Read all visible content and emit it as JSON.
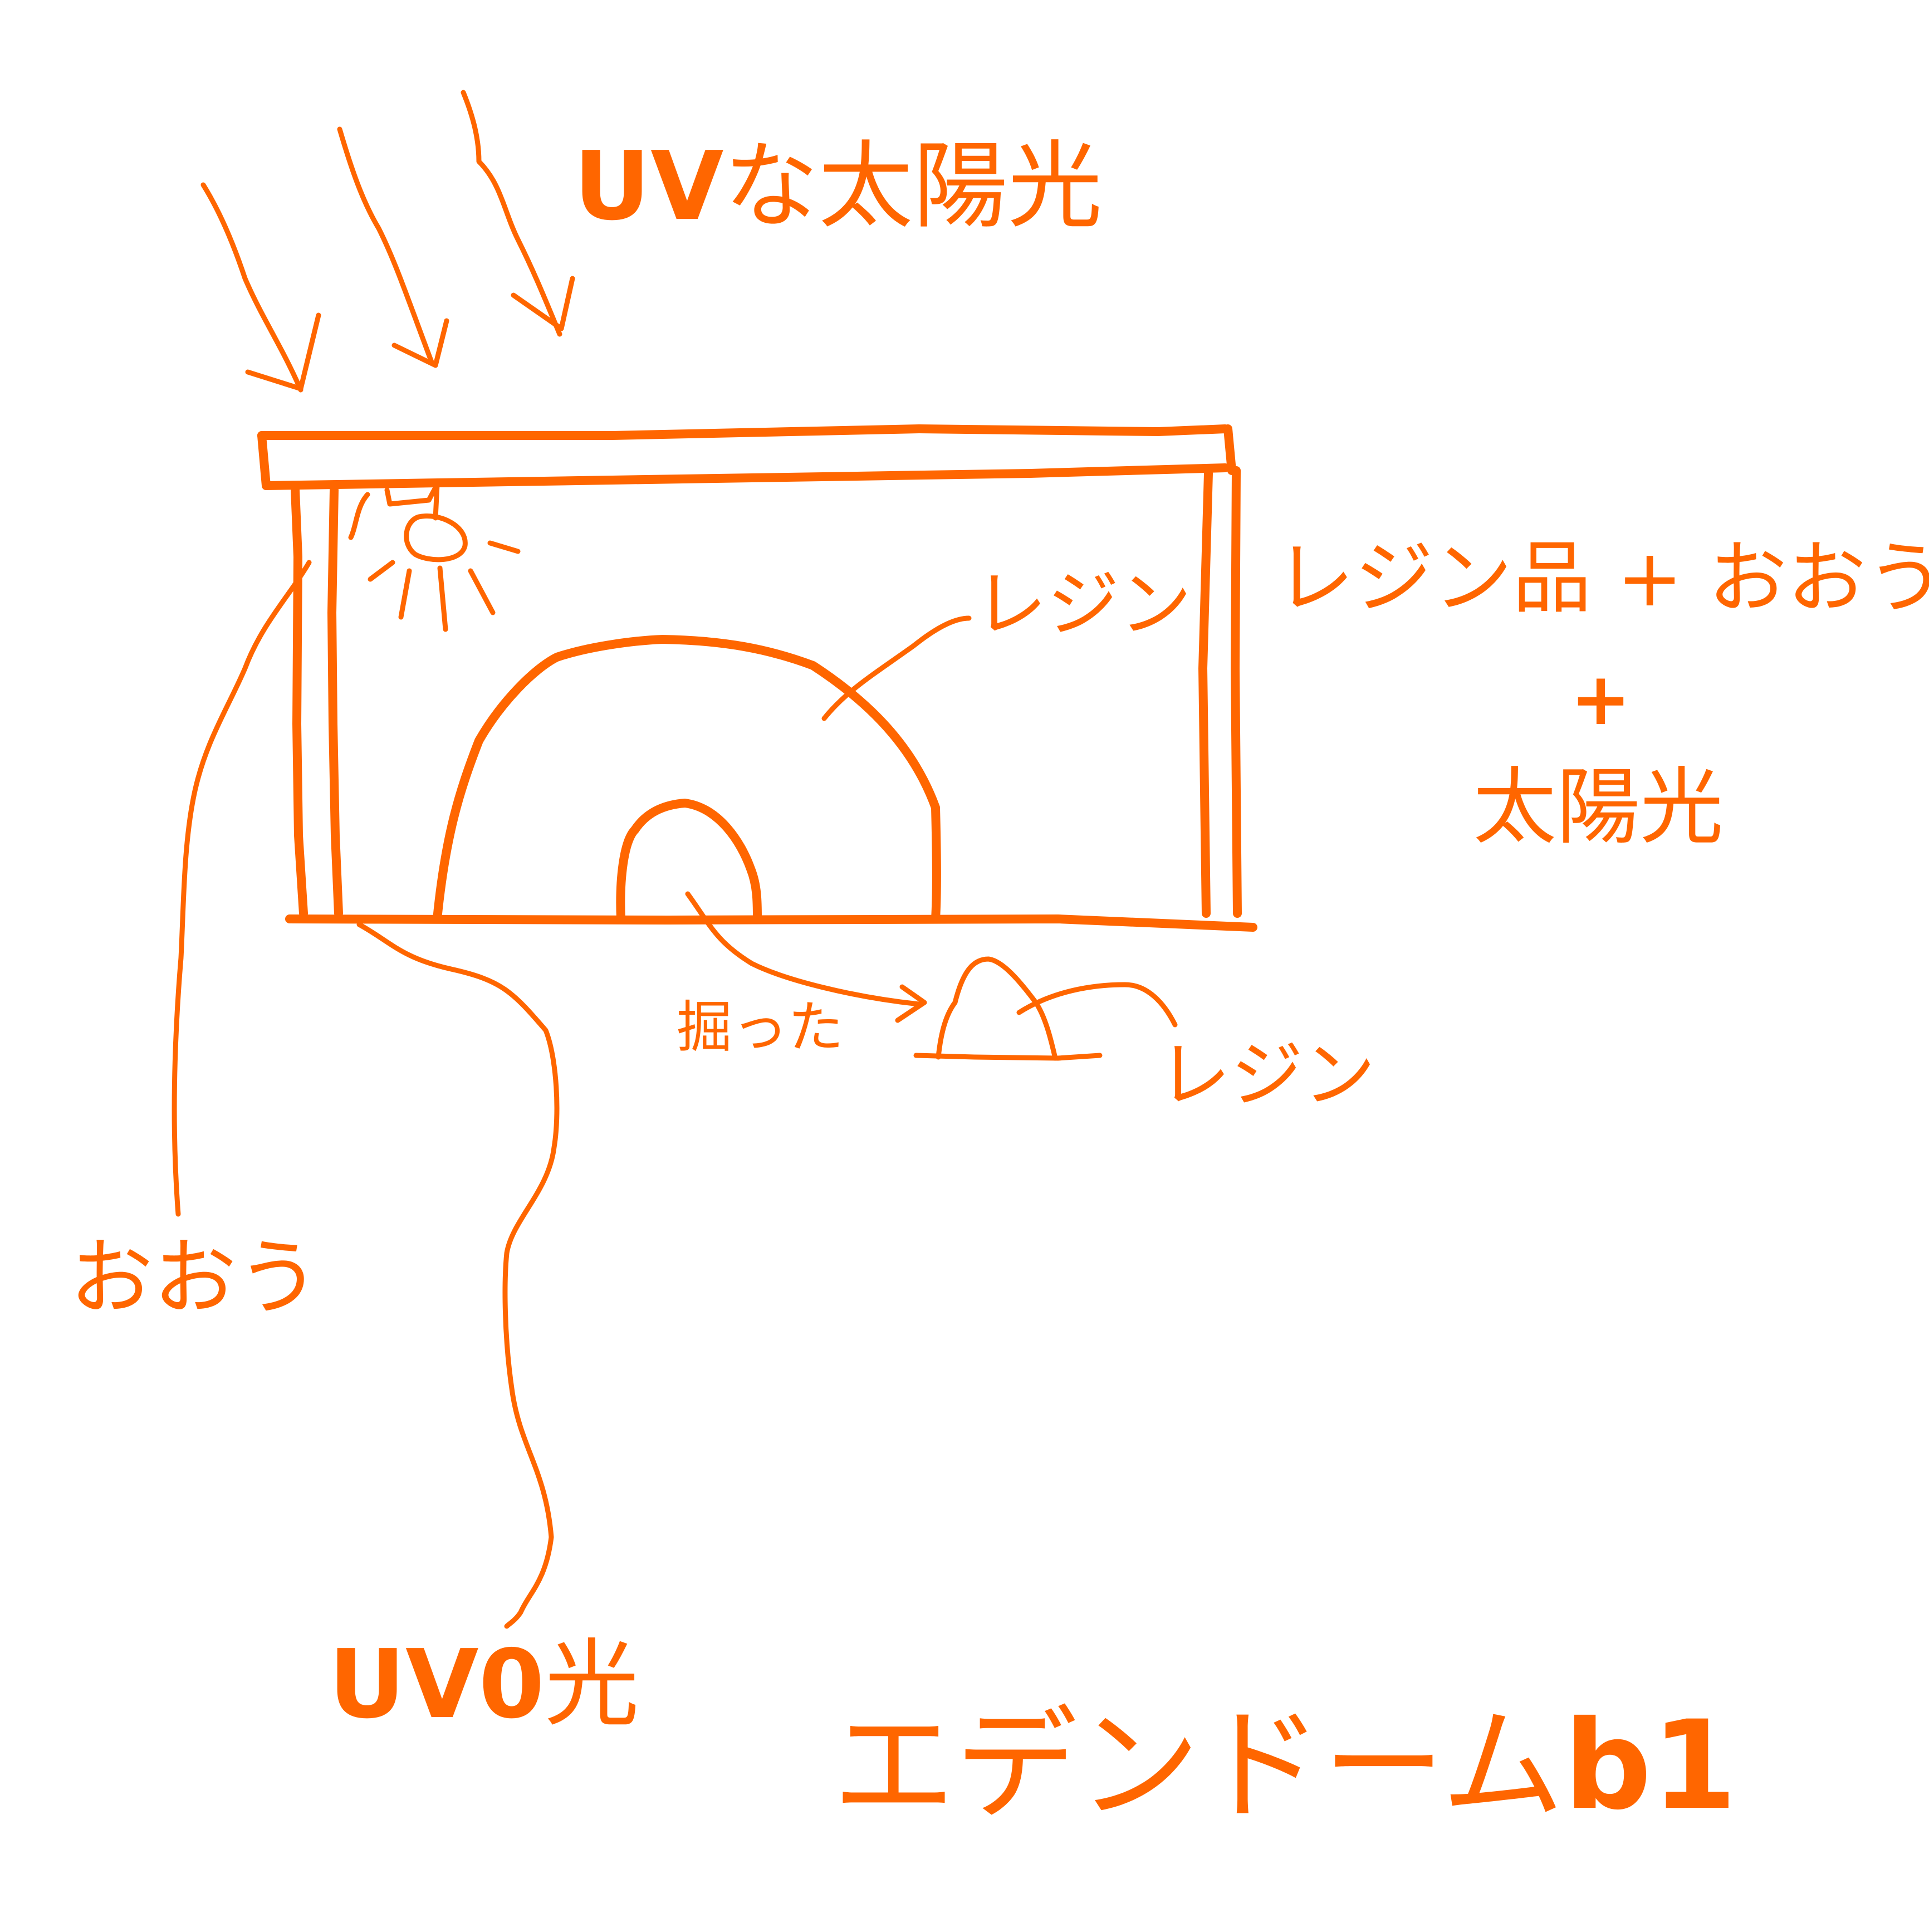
{
  "colors": {
    "ink": "#ff6600",
    "background": "#ffffff"
  },
  "labels": {
    "uv_sun_uv": "UV",
    "uv_sun_rest": "な太陽光",
    "resin_product_line": "レジン品 + おおう",
    "plus": "+",
    "sunlight": "太陽光",
    "resin_dome": "レジン",
    "cover": "おおう",
    "dug": "掘った",
    "resin_small": "レジン",
    "uv0_uv": "UV",
    "uv0_zero": "0",
    "uv0_light": "光",
    "title_katakana": "エデンドーム",
    "title_suffix": "b1"
  }
}
